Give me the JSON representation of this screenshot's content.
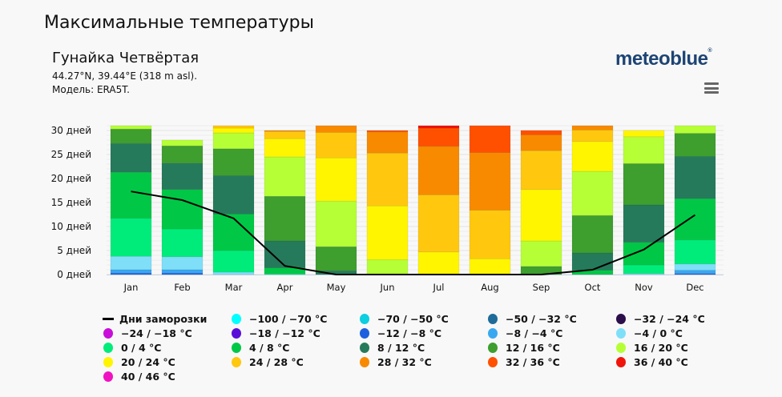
{
  "header": {
    "title": "Максимальные температуры",
    "location": "Гунайка Четвёртая",
    "coords": "44.27°N, 39.44°E (318 m asl).",
    "model": "Модель: ERA5T.",
    "logo": "meteoblue",
    "menu_icon": "hamburger-menu-icon"
  },
  "chart_data": {
    "type": "bar",
    "stacked": true,
    "categories": [
      "Jan",
      "Feb",
      "Mar",
      "Apr",
      "May",
      "Jun",
      "Jul",
      "Aug",
      "Sep",
      "Oct",
      "Nov",
      "Dec"
    ],
    "y_ticks": [
      "0 дней",
      "5 дней",
      "10 дней",
      "15 дней",
      "20 дней",
      "25 дней",
      "30 дней"
    ],
    "ylim": [
      0,
      31
    ],
    "grid": true,
    "legend_placement": "bottom",
    "line_series": {
      "name": "Дни заморозки",
      "color": "#000000",
      "values": [
        17.3,
        15.5,
        11.7,
        1.8,
        0,
        0,
        0,
        0,
        0,
        1.0,
        5.2,
        12.4
      ]
    },
    "series": [
      {
        "name": "−100 / −70 °C",
        "color": "#00ffff",
        "values": [
          0,
          0,
          0,
          0,
          0,
          0,
          0,
          0,
          0,
          0,
          0,
          0
        ]
      },
      {
        "name": "−70 / −50 °C",
        "color": "#0ccfdf",
        "values": [
          0,
          0,
          0,
          0,
          0,
          0,
          0,
          0,
          0,
          0,
          0,
          0
        ]
      },
      {
        "name": "−50 / −32 °C",
        "color": "#1f6b99",
        "values": [
          0,
          0,
          0,
          0,
          0,
          0,
          0,
          0,
          0,
          0,
          0,
          0
        ]
      },
      {
        "name": "−32 / −24 °C",
        "color": "#2c0e4a",
        "values": [
          0,
          0,
          0,
          0,
          0,
          0,
          0,
          0,
          0,
          0,
          0,
          0
        ]
      },
      {
        "name": "−24 / −18 °C",
        "color": "#c80ed8",
        "values": [
          0,
          0,
          0,
          0,
          0,
          0,
          0,
          0,
          0,
          0,
          0,
          0
        ]
      },
      {
        "name": "−18 / −12 °C",
        "color": "#5a0ed8",
        "values": [
          0,
          0,
          0,
          0,
          0,
          0,
          0,
          0,
          0,
          0,
          0,
          0
        ]
      },
      {
        "name": "−12 / −8 °C",
        "color": "#1e5fe0",
        "values": [
          0.3,
          0.3,
          0,
          0,
          0,
          0,
          0,
          0,
          0,
          0,
          0,
          0.2
        ]
      },
      {
        "name": "−8 / −4 °C",
        "color": "#3aa8f0",
        "values": [
          0.7,
          0.7,
          0,
          0,
          0,
          0,
          0,
          0,
          0,
          0,
          0,
          0.7
        ]
      },
      {
        "name": "−4 / 0 °C",
        "color": "#7fdff8",
        "values": [
          2.8,
          2.7,
          0.5,
          0,
          0,
          0,
          0,
          0,
          0,
          0,
          0.2,
          1.3
        ]
      },
      {
        "name": "0 / 4 °C",
        "color": "#00ec7a",
        "values": [
          7.9,
          5.8,
          4.5,
          0.2,
          0,
          0,
          0,
          0,
          0,
          0,
          1.8,
          5.0
        ]
      },
      {
        "name": "4 / 8 °C",
        "color": "#00c846",
        "values": [
          9.6,
          8.2,
          7.6,
          1.2,
          0,
          0,
          0,
          0,
          0,
          0.9,
          4.7,
          8.6
        ]
      },
      {
        "name": "8 / 12 °C",
        "color": "#267a5c",
        "values": [
          6.0,
          5.5,
          8.0,
          5.6,
          0.8,
          0,
          0,
          0,
          0,
          3.6,
          7.8,
          8.8
        ]
      },
      {
        "name": "12 / 16 °C",
        "color": "#3e9e2e",
        "values": [
          3.0,
          3.6,
          5.6,
          9.3,
          5.0,
          0,
          0,
          0,
          1.7,
          7.8,
          8.6,
          4.8
        ]
      },
      {
        "name": "16 / 20 °C",
        "color": "#b6ff36",
        "values": [
          0.7,
          1.2,
          3.3,
          8.2,
          9.5,
          3.1,
          0,
          0,
          5.3,
          9.2,
          5.6,
          1.6
        ]
      },
      {
        "name": "20 / 24 °C",
        "color": "#fff500",
        "values": [
          0,
          0,
          1.0,
          3.8,
          9.0,
          11.2,
          4.7,
          3.3,
          10.7,
          6.2,
          1.3,
          0
        ]
      },
      {
        "name": "24 / 28 °C",
        "color": "#ffc80e",
        "values": [
          0,
          0,
          0.5,
          1.5,
          5.3,
          11.0,
          11.9,
          10.1,
          8.1,
          2.4,
          0,
          0
        ]
      },
      {
        "name": "28 / 32 °C",
        "color": "#f88a00",
        "values": [
          0,
          0,
          0,
          0.2,
          1.4,
          4.4,
          10.1,
          12.0,
          3.3,
          0.9,
          0,
          0
        ]
      },
      {
        "name": "32 / 36 °C",
        "color": "#ff5000",
        "values": [
          0,
          0,
          0,
          0,
          0,
          0.3,
          3.8,
          5.6,
          0.9,
          0,
          0,
          0
        ]
      },
      {
        "name": "36 / 40 °C",
        "color": "#f0140a",
        "values": [
          0,
          0,
          0,
          0,
          0,
          0,
          0.5,
          0,
          0,
          0,
          0,
          0
        ]
      },
      {
        "name": "40 / 46 °C",
        "color": "#f012c0",
        "values": [
          0,
          0,
          0,
          0,
          0,
          0,
          0,
          0,
          0,
          0,
          0,
          0
        ]
      }
    ]
  }
}
